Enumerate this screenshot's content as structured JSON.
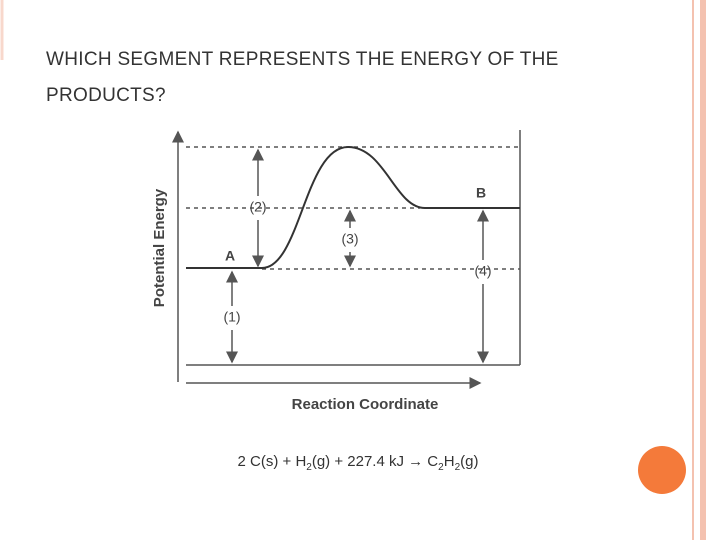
{
  "title": "WHICH SEGMENT REPRESENTS THE ENERGY OF THE PRODUCTS?",
  "diagram": {
    "y_axis_label": "Potential Energy",
    "x_axis_label": "Reaction Coordinate",
    "points": [
      "A",
      "B"
    ],
    "segments": [
      "(1)",
      "(2)",
      "(3)",
      "(4)"
    ]
  },
  "equation": [
    {
      "text": "2 C(s) + H",
      "subscript": false
    },
    {
      "text": "2",
      "subscript": true
    },
    {
      "text": "(g) + 227.4 kJ → C",
      "subscript": false
    },
    {
      "text": "2",
      "subscript": true
    },
    {
      "text": "H",
      "subscript": false
    },
    {
      "text": "2",
      "subscript": true
    },
    {
      "text": "(g)",
      "subscript": false
    }
  ]
}
